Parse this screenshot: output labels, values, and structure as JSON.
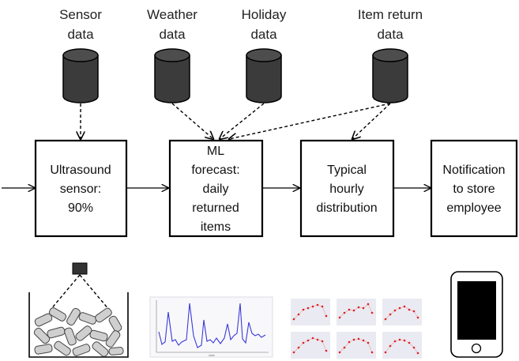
{
  "sources": {
    "sensor": [
      "Sensor",
      "data"
    ],
    "weather": [
      "Weather",
      "data"
    ],
    "holiday": [
      "Holiday",
      "data"
    ],
    "item_return": [
      "Item return",
      "data"
    ]
  },
  "steps": {
    "ultrasound": [
      "Ultrasound",
      "sensor:",
      "90%"
    ],
    "ml_forecast": [
      "ML",
      "forecast:",
      "daily",
      "returned",
      "items"
    ],
    "hourly": [
      "Typical",
      "hourly",
      "distribution"
    ],
    "notification": [
      "Notification",
      "to store",
      "employee"
    ]
  },
  "colors": {
    "cylinder": "#3b3b3b",
    "line_series": "#3a3ad8",
    "dot_series": "#e02020",
    "plot_bg": "#eaeaf2"
  },
  "icons": {
    "sensor_bin": "ultrasound-sensor-bin-icon",
    "forecast_chart": "line-chart-icon",
    "distribution_charts": "small-multiples-chart-icon",
    "phone": "smartphone-icon"
  }
}
